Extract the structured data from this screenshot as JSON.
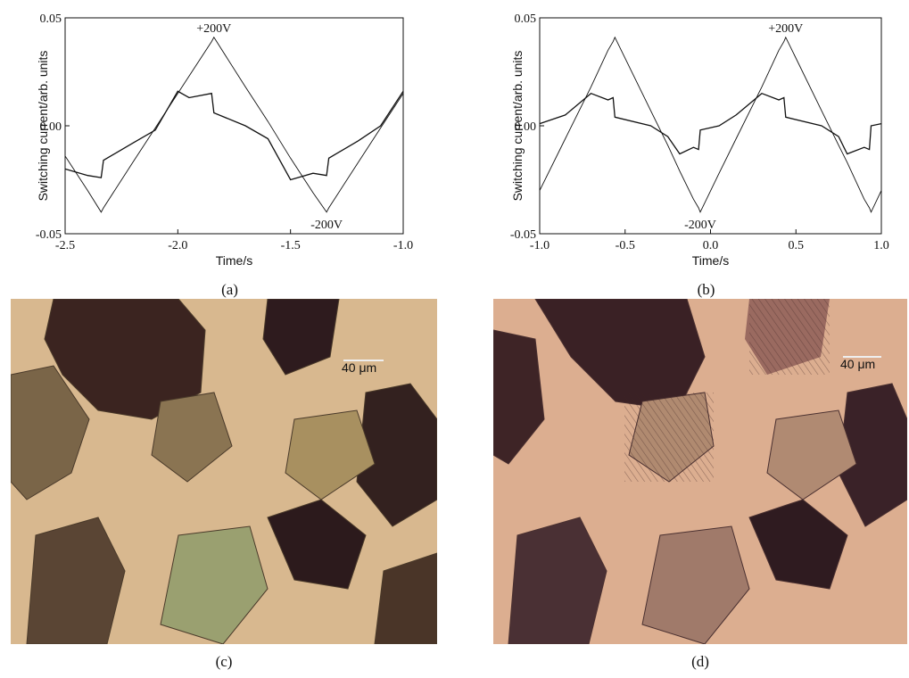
{
  "chart_data": [
    {
      "type": "line",
      "xlabel": "Time/s",
      "ylabel": "Switching current/arb. units",
      "caption": "(a)",
      "xlim": [
        -2.5,
        -1.0
      ],
      "ylim": [
        -0.05,
        0.05
      ],
      "xticks": [
        -2.5,
        {
          "value": -2,
          "label": "-2.0"
        },
        -1.5,
        {
          "value": -1,
          "label": "-1.0"
        }
      ],
      "yticks": [
        -0.05,
        {
          "value": 0,
          "label": "0.00"
        },
        0.05
      ],
      "annotations": [
        "+200V",
        "-200V"
      ],
      "x": [
        -2.5,
        -2.4,
        -2.34,
        -2.33,
        -2.2,
        -2.1,
        -2.0,
        -1.95,
        -1.85,
        -1.84,
        -1.7,
        -1.6,
        -1.5,
        -1.4,
        -1.34,
        -1.33,
        -1.2,
        -1.1,
        -1.0
      ],
      "series": [
        {
          "color": "#111111",
          "values": [
            -0.014,
            -0.03,
            -0.04,
            -0.038,
            -0.017,
            -0.001,
            0.015,
            0.023,
            0.039,
            0.041,
            0.018,
            0.002,
            -0.015,
            -0.031,
            -0.04,
            -0.038,
            -0.017,
            -0.001,
            0.015
          ]
        },
        {
          "color": "#111111",
          "values": [
            -0.02,
            -0.023,
            -0.024,
            -0.016,
            -0.008,
            -0.002,
            0.016,
            0.013,
            0.015,
            0.006,
            0.0,
            -0.006,
            -0.025,
            -0.022,
            -0.023,
            -0.015,
            -0.007,
            0.0,
            0.016
          ]
        }
      ]
    },
    {
      "type": "line",
      "xlabel": "Time/s",
      "ylabel": "Switching current/arb. units",
      "caption": "(b)",
      "xlim": [
        -1.0,
        1.0
      ],
      "ylim": [
        -0.05,
        0.05
      ],
      "xticks": [
        {
          "value": -1,
          "label": "-1.0"
        },
        -0.5,
        {
          "value": 0,
          "label": "0.0"
        },
        0.5,
        {
          "value": 1,
          "label": "1.0"
        }
      ],
      "yticks": [
        -0.05,
        {
          "value": 0,
          "label": "0.00"
        },
        0.05
      ],
      "annotations": [
        "+200V",
        "-200V"
      ],
      "x": [
        -1.0,
        -0.85,
        -0.7,
        -0.6,
        -0.57,
        -0.56,
        -0.35,
        -0.25,
        -0.18,
        -0.1,
        -0.07,
        -0.06,
        0.05,
        0.15,
        0.3,
        0.4,
        0.43,
        0.44,
        0.65,
        0.75,
        0.8,
        0.9,
        0.93,
        0.94,
        1.0
      ],
      "series": [
        {
          "color": "#111111",
          "values": [
            -0.03,
            -0.006,
            0.018,
            0.035,
            0.039,
            0.041,
            0.007,
            -0.009,
            -0.021,
            -0.034,
            -0.038,
            -0.04,
            -0.022,
            -0.006,
            0.018,
            0.035,
            0.039,
            0.041,
            0.007,
            -0.009,
            -0.017,
            -0.034,
            -0.038,
            -0.04,
            -0.03
          ]
        },
        {
          "color": "#111111",
          "values": [
            0.001,
            0.005,
            0.015,
            0.012,
            0.013,
            0.004,
            0.0,
            -0.005,
            -0.013,
            -0.01,
            -0.011,
            -0.002,
            0.0,
            0.005,
            0.015,
            0.012,
            0.013,
            0.004,
            0.0,
            -0.005,
            -0.013,
            -0.01,
            -0.011,
            0.0,
            0.001
          ]
        }
      ]
    }
  ],
  "figures": [
    {
      "caption": "(c)",
      "scale_label": "40 μm"
    },
    {
      "caption": "(d)",
      "scale_label": "40 μm"
    }
  ]
}
